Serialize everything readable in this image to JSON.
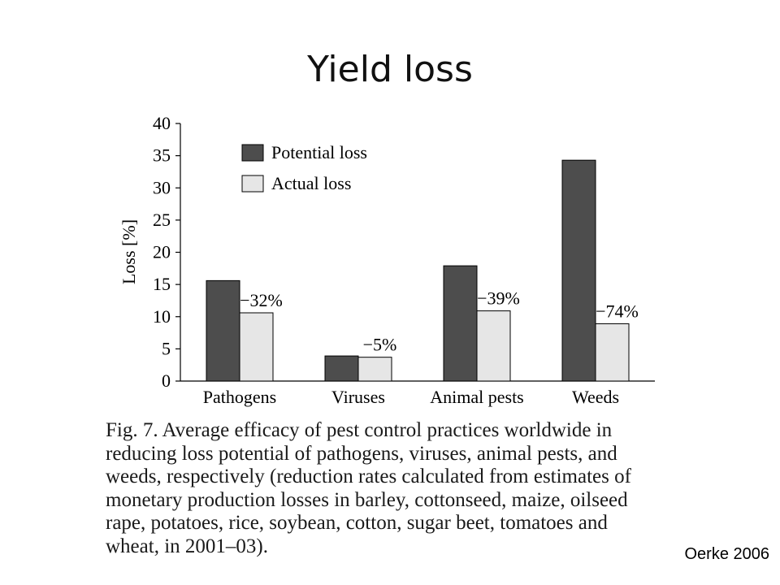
{
  "slide": {
    "title": "Yield loss",
    "caption": "Fig. 7. Average efficacy of pest control practices worldwide in reducing loss potential of pathogens, viruses, animal pests, and weeds, respectively (reduction rates calculated from estimates of monetary production losses in barley, cottonseed, maize, oilseed rape, potatoes, rice, soybean, cotton, sugar beet, tomatoes and wheat, in 2001–03).",
    "credit": "Oerke 2006"
  },
  "chart_data": {
    "type": "bar",
    "title": "",
    "xlabel": "",
    "ylabel": "Loss [%]",
    "ylim": [
      0,
      40
    ],
    "yticks": [
      "0",
      "5",
      "10",
      "15",
      "20",
      "25",
      "30",
      "35",
      "40"
    ],
    "categories": [
      "Pathogens",
      "Viruses",
      "Animal pests",
      "Weeds"
    ],
    "series": [
      {
        "name": "Potential loss",
        "color": "#4d4d4d",
        "values": [
          15.6,
          3.9,
          17.9,
          34.3
        ]
      },
      {
        "name": "Actual loss",
        "color": "#e6e6e6",
        "values": [
          10.6,
          3.7,
          10.9,
          8.9
        ]
      }
    ],
    "annotations": [
      "−32%",
      "−5%",
      "−39%",
      "−74%"
    ],
    "legend_position": "top-left",
    "grid": false
  }
}
